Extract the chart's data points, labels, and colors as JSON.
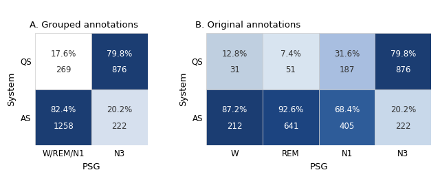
{
  "panel_A": {
    "title": "A. Grouped annotations",
    "xlabel": "PSG",
    "ylabel": "System",
    "col_labels": [
      "W/REM/N1",
      "N3"
    ],
    "row_labels": [
      "QS",
      "AS"
    ],
    "values": [
      [
        "17.6%",
        "79.8%"
      ],
      [
        "82.4%",
        "20.2%"
      ]
    ],
    "counts": [
      [
        "269",
        "876"
      ],
      [
        "1258",
        "222"
      ]
    ],
    "colors": [
      [
        "#ffffff",
        "#1b3d72"
      ],
      [
        "#1b3d72",
        "#d6e0ee"
      ]
    ],
    "text_colors": [
      [
        "#333333",
        "#ffffff"
      ],
      [
        "#ffffff",
        "#333333"
      ]
    ]
  },
  "panel_B": {
    "title": "B. Original annotations",
    "xlabel": "PSG",
    "ylabel": "System",
    "col_labels": [
      "W",
      "REM",
      "N1",
      "N3"
    ],
    "row_labels": [
      "QS",
      "AS"
    ],
    "values": [
      [
        "12.8%",
        "7.4%",
        "31.6%",
        "79.8%"
      ],
      [
        "87.2%",
        "92.6%",
        "68.4%",
        "20.2%"
      ]
    ],
    "counts": [
      [
        "31",
        "51",
        "187",
        "876"
      ],
      [
        "212",
        "641",
        "405",
        "222"
      ]
    ],
    "colors": [
      [
        "#bfcfe0",
        "#d8e4f0",
        "#a8bee0",
        "#1b3d72"
      ],
      [
        "#1b3d72",
        "#1c4480",
        "#2e5c99",
        "#c8d8ea"
      ]
    ],
    "text_colors": [
      [
        "#333333",
        "#333333",
        "#333333",
        "#ffffff"
      ],
      [
        "#ffffff",
        "#ffffff",
        "#ffffff",
        "#333333"
      ]
    ]
  },
  "bg_color": "#ffffff",
  "cell_edgecolor": "#cccccc",
  "cell_linewidth": 0.5,
  "pct_fontsize": 8.5,
  "cnt_fontsize": 8.5,
  "tick_fontsize": 8.5,
  "label_fontsize": 9.5,
  "title_fontsize": 9.5
}
